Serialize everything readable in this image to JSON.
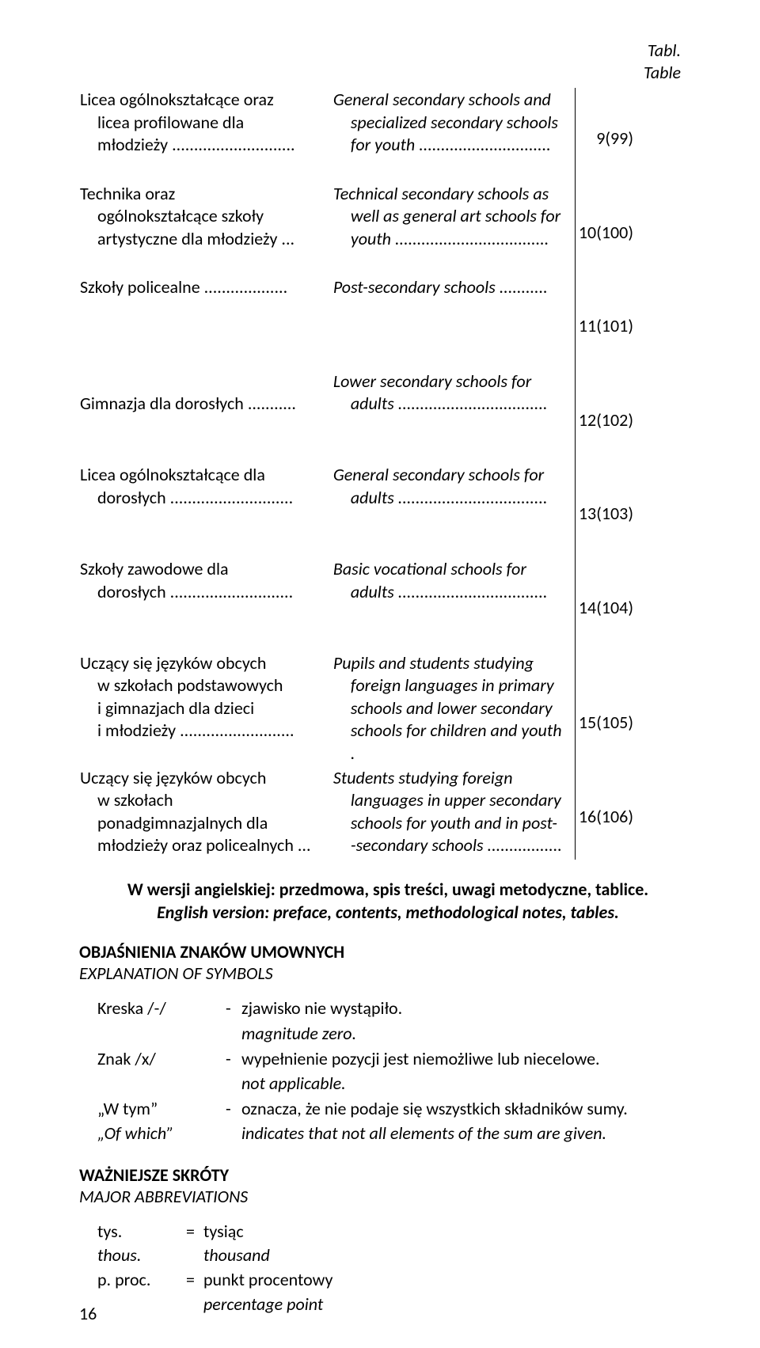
{
  "header": {
    "tabl": "Tabl.",
    "table": "Table"
  },
  "toc": [
    {
      "pl": "Licea ogólnokształcące oraz\n  licea profilowane dla\n  młodzieży ............................",
      "en": "General secondary schools and\n  specialized secondary schools\n  for youth ..............................",
      "page": "9(99)"
    },
    {
      "pl": "Technika oraz\n  ogólnokształcące szkoły\n  artystyczne dla młodzieży ...",
      "en": "Technical secondary schools as\n  well as general art schools for\n  youth ...................................",
      "page": "10(100)"
    },
    {
      "pl": "Szkoły policealne ...................",
      "en": "Post-secondary schools ...........",
      "page": "11(101)"
    },
    {
      "pl": "\nGimnazja dla dorosłych ...........",
      "en": "Lower secondary schools for\n  adults ..................................",
      "page": "12(102)"
    },
    {
      "pl": "Licea ogólnokształcące dla\n  dorosłych ............................",
      "en": "General secondary schools for\n  adults ..................................",
      "page": "13(103)"
    },
    {
      "pl": "Szkoły zawodowe dla\n  dorosłych ............................",
      "en": "Basic vocational schools for\n  adults ..................................",
      "page": "14(104)"
    },
    {
      "pl": "Uczący się języków obcych\n  w szkołach podstawowych\n  i gimnazjach dla dzieci\n  i młodzieży ..........................",
      "en": "Pupils and students studying\n  foreign languages in primary\n  schools and lower secondary\n  schools for children and youth .",
      "page": "15(105)"
    },
    {
      "pl": "Uczący się języków obcych\n  w szkołach\n  ponadgimnazjalnych dla\n  młodzieży oraz policealnych ...",
      "en": "Students studying foreign\n  languages in upper secondary\n  schools for youth and in post-\n  -secondary schools .................",
      "page": "16(106)"
    }
  ],
  "version_note": {
    "pl": "W wersji angielskiej: przedmowa, spis treści, uwagi metodyczne, tablice.",
    "en": "English version: preface, contents, methodological notes, tables."
  },
  "symbols": {
    "heading_pl": "OBJAŚNIENIA ZNAKÓW UMOWNYCH",
    "heading_en": "EXPLANATION OF SYMBOLS",
    "rows": [
      {
        "sym_pl": "Kreska /-/",
        "sym_en": "",
        "desc_pl": "zjawisko nie wystąpiło.",
        "desc_en": "magnitude zero."
      },
      {
        "sym_pl": "Znak /x/",
        "sym_en": "",
        "desc_pl": "wypełnienie pozycji jest niemożliwe lub niecelowe.",
        "desc_en": "not applicable."
      },
      {
        "sym_pl": "„W tym”",
        "sym_en": "„Of which”",
        "desc_pl": "oznacza, że nie podaje się wszystkich składników sumy.",
        "desc_en": "indicates that not all elements of the sum are given."
      }
    ]
  },
  "abbrev": {
    "heading_pl": "WAŻNIEJSZE SKRÓTY",
    "heading_en": "MAJOR ABBREVIATIONS",
    "rows": [
      {
        "abbr_pl": "tys.",
        "abbr_en": "thous.",
        "eq": "=",
        "val_pl": "tysiąc",
        "val_en": "thousand"
      },
      {
        "abbr_pl": "p. proc.",
        "abbr_en": "",
        "eq": "=",
        "val_pl": "punkt procentowy",
        "val_en": "percentage point"
      }
    ]
  },
  "page_number": "16"
}
